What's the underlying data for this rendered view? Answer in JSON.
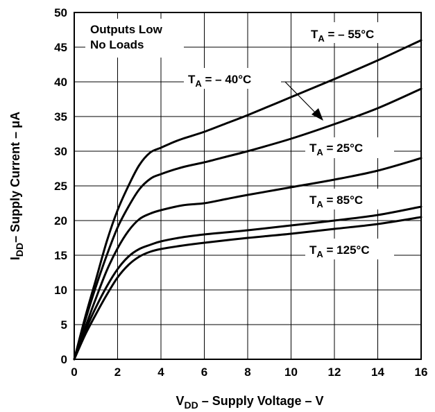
{
  "chart_data": {
    "type": "line",
    "xlabel": {
      "main": "V",
      "sub": "DD",
      "rest": " – Supply Voltage – V"
    },
    "ylabel": {
      "main": "I",
      "sub": "DD",
      "rest": "– Supply Current – μA"
    },
    "xlim": [
      0,
      16
    ],
    "ylim": [
      0,
      50
    ],
    "x_ticks": [
      "0",
      "2",
      "4",
      "6",
      "8",
      "10",
      "12",
      "14",
      "16"
    ],
    "y_ticks": [
      "0",
      "5",
      "10",
      "15",
      "20",
      "25",
      "30",
      "35",
      "40",
      "45",
      "50"
    ],
    "grid": true,
    "annotation_box": [
      "Outputs Low",
      "No Loads"
    ],
    "series": [
      {
        "name": "T_A = – 55°C",
        "label": {
          "main": "T",
          "sub": "A",
          "rest": " = – 55°C"
        },
        "x": [
          0,
          0.5,
          1,
          1.5,
          2,
          2.5,
          3,
          3.5,
          4,
          4.5,
          5,
          6,
          7,
          8,
          10,
          12,
          14,
          16
        ],
        "y": [
          0,
          6,
          11.5,
          17,
          21.5,
          25,
          28,
          29.8,
          30.5,
          31.2,
          31.8,
          32.8,
          34,
          35.2,
          37.8,
          40.4,
          43.1,
          46
        ]
      },
      {
        "name": "T_A = – 40°C",
        "label": {
          "main": "T",
          "sub": "A",
          "rest": " = – 40°C"
        },
        "x": [
          0,
          0.5,
          1,
          1.5,
          2,
          2.5,
          3,
          3.5,
          4,
          5,
          6,
          7,
          8,
          10,
          12,
          14,
          16
        ],
        "y": [
          0,
          5.5,
          10.5,
          15,
          19,
          22,
          24.5,
          26,
          26.7,
          27.7,
          28.4,
          29.2,
          30,
          31.8,
          33.9,
          36.2,
          39
        ]
      },
      {
        "name": "T_A = 25°C",
        "label": {
          "main": "T",
          "sub": "A",
          "rest": " =  25°C"
        },
        "x": [
          0,
          0.5,
          1,
          1.5,
          2,
          2.5,
          3,
          3.5,
          4,
          5,
          6,
          7,
          8,
          10,
          12,
          14,
          16
        ],
        "y": [
          0,
          4.5,
          8.8,
          12.8,
          16,
          18.5,
          20.2,
          21,
          21.5,
          22.2,
          22.5,
          23.1,
          23.7,
          24.8,
          25.9,
          27.2,
          29
        ]
      },
      {
        "name": "T_A = 85°C",
        "label": {
          "main": "T",
          "sub": "A",
          "rest": " =  85°C"
        },
        "x": [
          0,
          0.5,
          1,
          1.5,
          2,
          2.5,
          3,
          3.5,
          4,
          5,
          6,
          8,
          10,
          12,
          14,
          16
        ],
        "y": [
          0,
          4,
          7.5,
          10.5,
          13,
          14.8,
          15.9,
          16.5,
          17,
          17.6,
          18,
          18.6,
          19.3,
          20,
          20.8,
          22
        ]
      },
      {
        "name": "T_A = 125°C",
        "label": {
          "main": "T",
          "sub": "A",
          "rest": " = 125°C"
        },
        "x": [
          0,
          0.5,
          1,
          1.5,
          2,
          2.5,
          3,
          3.5,
          4,
          5,
          6,
          8,
          10,
          12,
          14,
          16
        ],
        "y": [
          0,
          3.5,
          6.5,
          9.3,
          11.8,
          13.6,
          14.8,
          15.5,
          15.9,
          16.4,
          16.8,
          17.5,
          18.1,
          18.8,
          19.5,
          20.5
        ]
      }
    ]
  }
}
